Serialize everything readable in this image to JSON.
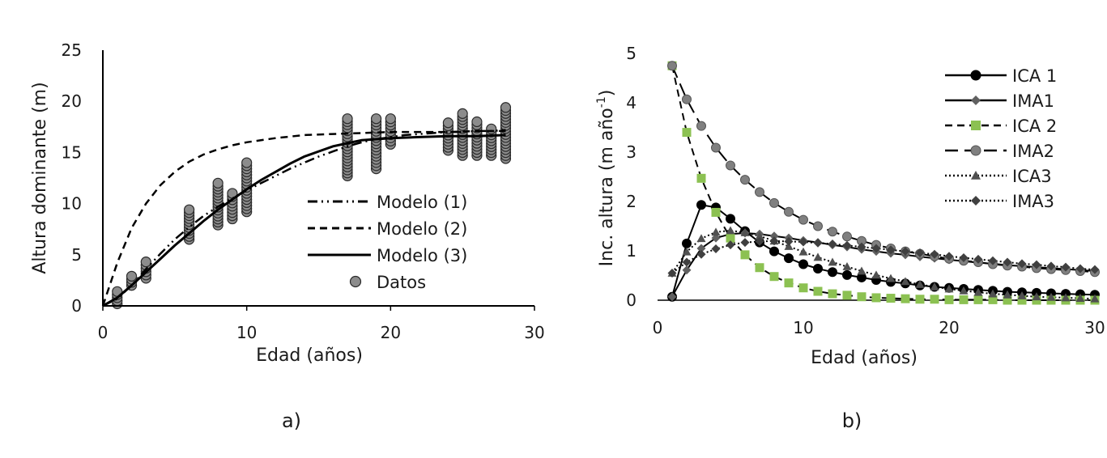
{
  "chart_data": [
    {
      "type": "scatter",
      "panel_label": "a)",
      "xlabel": "Edad (años)",
      "ylabel": "Altura dominante (m)",
      "xlim": [
        0,
        30
      ],
      "ylim": [
        0,
        25
      ],
      "xticks": [
        "0",
        "10",
        "20",
        "30"
      ],
      "yticks": [
        "0",
        "5",
        "10",
        "15",
        "20",
        "25"
      ],
      "legend_position": "center-right",
      "series": [
        {
          "name": "Modelo (1)",
          "style": "dash-dot-dot",
          "color": "#000000",
          "x": [
            0,
            1,
            2,
            3,
            4,
            5,
            6,
            7,
            8,
            9,
            10,
            11,
            12,
            13,
            14,
            15,
            16,
            17,
            18,
            19,
            20,
            21,
            22,
            23,
            24,
            25,
            26,
            27,
            28
          ],
          "y": [
            0,
            0.7,
            2.0,
            3.6,
            5.1,
            6.5,
            7.7,
            8.8,
            9.7,
            10.5,
            11.3,
            12.0,
            12.7,
            13.4,
            14.0,
            14.6,
            15.1,
            15.6,
            16.0,
            16.3,
            16.5,
            16.7,
            16.8,
            16.9,
            17.0,
            17.0,
            17.1,
            17.1,
            17.2
          ]
        },
        {
          "name": "Modelo (2)",
          "style": "dashed",
          "color": "#000000",
          "x": [
            0,
            1,
            2,
            3,
            4,
            5,
            6,
            7,
            8,
            9,
            10,
            12,
            14,
            16,
            18,
            20,
            22,
            24,
            26,
            28
          ],
          "y": [
            0,
            4.2,
            7.6,
            10.0,
            11.8,
            13.1,
            14.1,
            14.8,
            15.3,
            15.7,
            16.0,
            16.4,
            16.7,
            16.8,
            16.9,
            17.0,
            17.0,
            17.0,
            17.1,
            17.1
          ]
        },
        {
          "name": "Modelo (3)",
          "style": "solid",
          "color": "#000000",
          "x": [
            0,
            1,
            2,
            3,
            4,
            5,
            6,
            7,
            8,
            9,
            10,
            11,
            12,
            13,
            14,
            15,
            16,
            17,
            18,
            19,
            20,
            22,
            24,
            26,
            28
          ],
          "y": [
            0,
            0.8,
            2.0,
            3.3,
            4.6,
            5.9,
            7.1,
            8.3,
            9.4,
            10.4,
            11.4,
            12.3,
            13.1,
            13.9,
            14.6,
            15.1,
            15.6,
            15.9,
            16.2,
            16.3,
            16.4,
            16.5,
            16.6,
            16.6,
            16.7
          ]
        },
        {
          "name": "Datos",
          "style": "markers",
          "color": "#8c8c8c",
          "groups": [
            {
              "x": 1,
              "y": [
                0.2,
                1.4
              ]
            },
            {
              "x": 2,
              "y": [
                2.0,
                2.9
              ]
            },
            {
              "x": 3,
              "y": [
                2.7,
                4.3
              ]
            },
            {
              "x": 6,
              "y": [
                6.5,
                9.4
              ]
            },
            {
              "x": 8,
              "y": [
                7.9,
                12.0
              ]
            },
            {
              "x": 9,
              "y": [
                8.5,
                11.0
              ]
            },
            {
              "x": 10,
              "y": [
                9.2,
                14.0
              ]
            },
            {
              "x": 17,
              "y": [
                12.7,
                18.3
              ]
            },
            {
              "x": 19,
              "y": [
                13.4,
                18.3
              ]
            },
            {
              "x": 20,
              "y": [
                15.8,
                18.3
              ]
            },
            {
              "x": 24,
              "y": [
                15.2,
                17.9
              ]
            },
            {
              "x": 25,
              "y": [
                14.7,
                18.8
              ]
            },
            {
              "x": 26,
              "y": [
                14.7,
                18.0
              ]
            },
            {
              "x": 27,
              "y": [
                14.7,
                17.3
              ]
            },
            {
              "x": 28,
              "y": [
                14.4,
                19.4
              ]
            }
          ]
        }
      ]
    },
    {
      "type": "line",
      "panel_label": "b)",
      "xlabel": "Edad (años)",
      "ylabel": "Inc. altura (m año",
      "ylabel_sup": "-1",
      "ylabel_end": ")",
      "xlim": [
        0,
        30
      ],
      "ylim": [
        0,
        5
      ],
      "xticks": [
        "0",
        "10",
        "20",
        "30"
      ],
      "yticks": [
        "0",
        "1",
        "2",
        "3",
        "4",
        "5"
      ],
      "legend_position": "top-right",
      "x": [
        1,
        2,
        3,
        4,
        5,
        6,
        7,
        8,
        9,
        10,
        11,
        12,
        13,
        14,
        15,
        16,
        17,
        18,
        19,
        20,
        21,
        22,
        23,
        24,
        25,
        26,
        27,
        28,
        29,
        30
      ],
      "series": [
        {
          "name": "ICA 1",
          "line": "solid",
          "marker": "circle",
          "color": "#000000",
          "values": [
            0.07,
            1.15,
            1.93,
            1.88,
            1.65,
            1.4,
            1.17,
            0.99,
            0.85,
            0.73,
            0.64,
            0.57,
            0.51,
            0.46,
            0.41,
            0.37,
            0.34,
            0.3,
            0.27,
            0.25,
            0.23,
            0.21,
            0.19,
            0.17,
            0.16,
            0.15,
            0.14,
            0.13,
            0.12,
            0.11
          ]
        },
        {
          "name": "IMA1",
          "line": "solid",
          "marker": "diamond",
          "color": "#606060",
          "values": [
            0.07,
            0.61,
            1.05,
            1.26,
            1.34,
            1.36,
            1.34,
            1.3,
            1.26,
            1.21,
            1.17,
            1.12,
            1.08,
            1.03,
            0.99,
            0.95,
            0.92,
            0.88,
            0.85,
            0.82,
            0.79,
            0.76,
            0.74,
            0.71,
            0.69,
            0.67,
            0.65,
            0.63,
            0.61,
            0.59
          ]
        },
        {
          "name": "ICA 2",
          "line": "dashed",
          "marker": "square",
          "color": "#8cc152",
          "values": [
            4.75,
            3.4,
            2.47,
            1.78,
            1.26,
            0.92,
            0.66,
            0.48,
            0.35,
            0.25,
            0.18,
            0.13,
            0.1,
            0.07,
            0.05,
            0.04,
            0.03,
            0.02,
            0.02,
            0.01,
            0.01,
            0.01,
            0.01,
            0.0,
            0.0,
            0.0,
            0.0,
            0.0,
            0.0,
            0.0
          ]
        },
        {
          "name": "IMA2",
          "line": "long-dash",
          "marker": "circle",
          "color": "#808080",
          "values": [
            4.75,
            4.07,
            3.53,
            3.09,
            2.73,
            2.44,
            2.19,
            1.97,
            1.79,
            1.63,
            1.5,
            1.39,
            1.29,
            1.2,
            1.12,
            1.05,
            0.99,
            0.94,
            0.89,
            0.84,
            0.8,
            0.77,
            0.73,
            0.7,
            0.68,
            0.65,
            0.63,
            0.61,
            0.59,
            0.57
          ]
        },
        {
          "name": "ICA3",
          "line": "dotted",
          "marker": "triangle",
          "color": "#505050",
          "values": [
            0.55,
            0.98,
            1.25,
            1.38,
            1.41,
            1.37,
            1.3,
            1.2,
            1.09,
            0.98,
            0.87,
            0.77,
            0.68,
            0.59,
            0.51,
            0.44,
            0.38,
            0.32,
            0.27,
            0.23,
            0.19,
            0.16,
            0.13,
            0.11,
            0.09,
            0.07,
            0.06,
            0.05,
            0.04,
            0.03
          ]
        },
        {
          "name": "IMA3",
          "line": "dotted",
          "marker": "diamond",
          "color": "#404040",
          "values": [
            0.55,
            0.77,
            0.93,
            1.04,
            1.12,
            1.17,
            1.19,
            1.2,
            1.19,
            1.18,
            1.16,
            1.14,
            1.11,
            1.08,
            1.05,
            1.02,
            0.99,
            0.96,
            0.93,
            0.89,
            0.86,
            0.83,
            0.8,
            0.77,
            0.74,
            0.72,
            0.69,
            0.67,
            0.64,
            0.62
          ]
        }
      ]
    }
  ]
}
